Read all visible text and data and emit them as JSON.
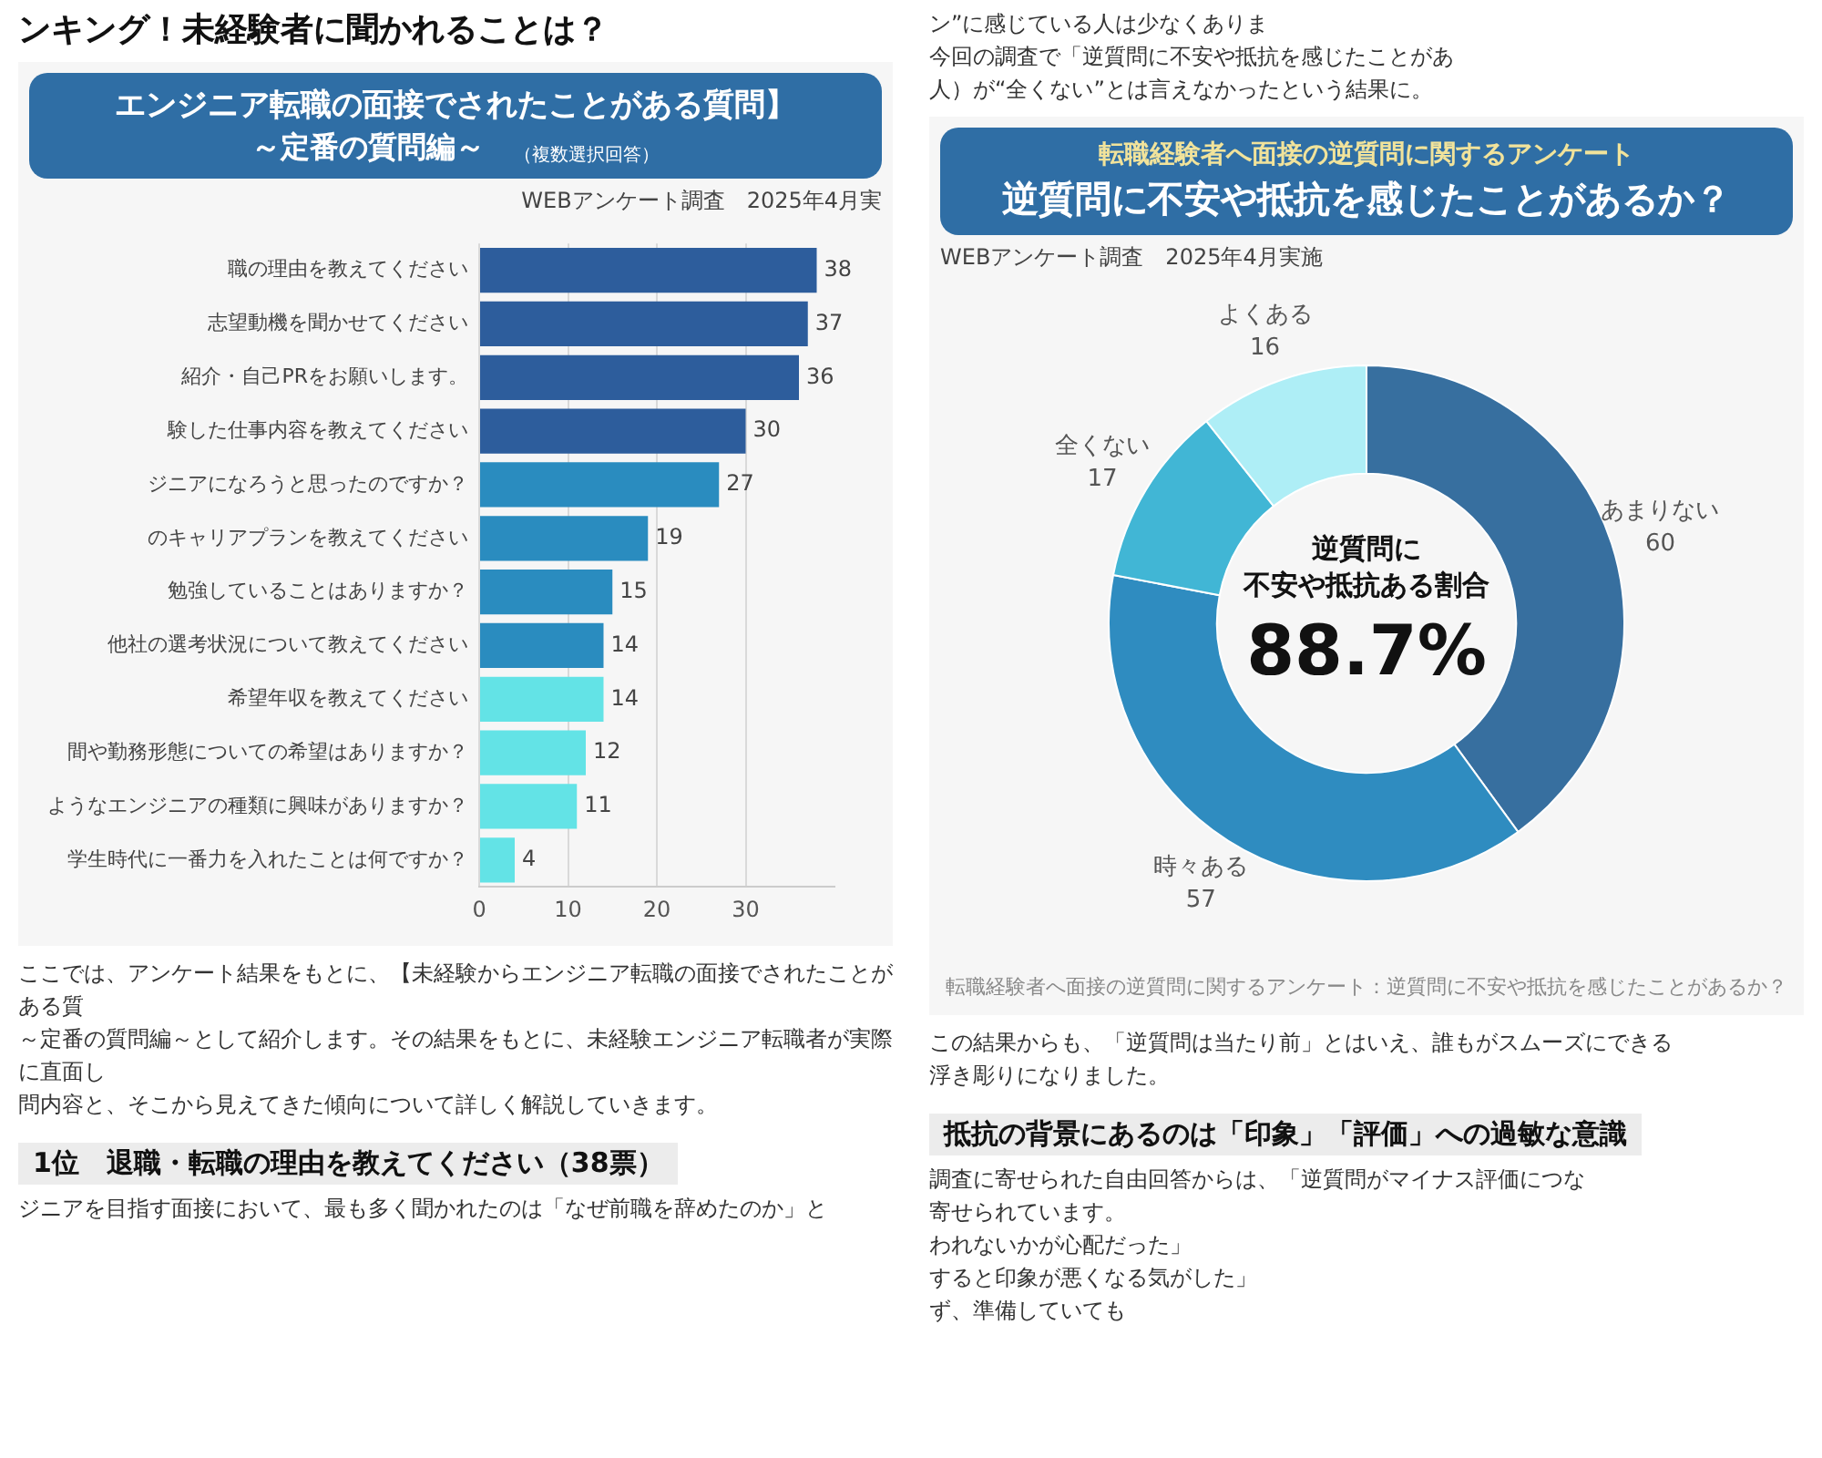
{
  "chart_data": [
    {
      "type": "other",
      "title": "ンキング！未経験者に聞かれることは？"
    },
    {
      "type": "other",
      "annotations": [
        "ン”に感じている人は少なくありま",
        "今回の調査で「逆質問に不安や抵抗を感じたことがあ",
        "人）が“全くない”とは言えなかったという結果に。"
      ]
    },
    {
      "type": "bar",
      "orientation": "horizontal",
      "title": "エンジニア転職の面接でされたことがある質問】",
      "subtitle": "～定番の質問編～",
      "annotations": [
        "（複数選択回答）",
        "WEBアンケート調査　2025年4月実"
      ],
      "categories": [
        "職の理由を教えてください",
        "志望動機を聞かせてください",
        "紹介・自己PRをお願いします。",
        "験した仕事内容を教えてください",
        "ジニアになろうと思ったのですか？",
        "のキャリアプランを教えてください",
        "勉強していることはありますか？",
        "他社の選考状況について教えてください",
        "希望年収を教えてください",
        "間や勤務形態についての希望はありますか？",
        "ようなエンジニアの種類に興味がありますか？",
        "学生時代に一番力を入れたことは何ですか？"
      ],
      "values": [
        38,
        37,
        36,
        30,
        27,
        19,
        15,
        14,
        14,
        12,
        11,
        4
      ],
      "colors": [
        "#2d5d9c",
        "#2d5d9c",
        "#2d5d9c",
        "#2d5d9c",
        "#2a8cbf",
        "#2a8cbf",
        "#2a8cbf",
        "#2a8cbf",
        "#63e3e6",
        "#63e3e6",
        "#63e3e6",
        "#63e3e6"
      ],
      "xlim": [
        0,
        40
      ],
      "xticks": [
        0,
        10,
        20,
        30
      ],
      "grid": "x",
      "data_labels": true
    },
    {
      "type": "donut",
      "title": "転職経験者へ面接の逆質問に関するアンケート",
      "subtitle": "逆質問に不安や抵抗を感じたことがあるか？",
      "annotations": [
        "WEBアンケート調査　2025年4月実施",
        "逆質問に",
        "不安や抵抗ある割合",
        "88.7%",
        "転職経験者へ面接の逆質問に関するアンケート：逆質問に不安や抵抗を感じたことがあるか？"
      ],
      "categories": [
        "あまりない",
        "時々ある",
        "全くない",
        "よくある"
      ],
      "values": [
        60,
        57,
        17,
        16
      ],
      "colors": [
        "#376f9f",
        "#2f8cc0",
        "#41b6d5",
        "#aeeef6"
      ],
      "data_labels": true
    },
    {
      "type": "other",
      "annotations": [
        "ここでは、アンケート結果をもとに、【未経験からエンジニア転職の面接でされたことがある質",
        "～定番の質問編～として紹介します。その結果をもとに、未経験エンジニア転職者が実際に直面し",
        "問内容と、そこから見えてきた傾向について詳しく解説していきます。"
      ]
    },
    {
      "type": "other",
      "title": "1位　退職・転職の理由を教えてください（38票）",
      "annotations": [
        "ジニアを目指す面接において、最も多く聞かれたのは「なぜ前職を辞めたのか」と"
      ]
    },
    {
      "type": "other",
      "annotations": [
        "この結果からも、「逆質問は当たり前」とはいえ、誰もがスムーズにできる",
        "浮き彫りになりました。"
      ]
    },
    {
      "type": "other",
      "title": "抵抗の背景にあるのは「印象」「評価」への過敏な意識",
      "annotations": [
        "調査に寄せられた自由回答からは、「逆質問がマイナス評価につな",
        "寄せられています。",
        "われないかが心配だった」",
        "すると印象が悪くなる気がした」",
        "ず、準備していても"
      ]
    }
  ]
}
